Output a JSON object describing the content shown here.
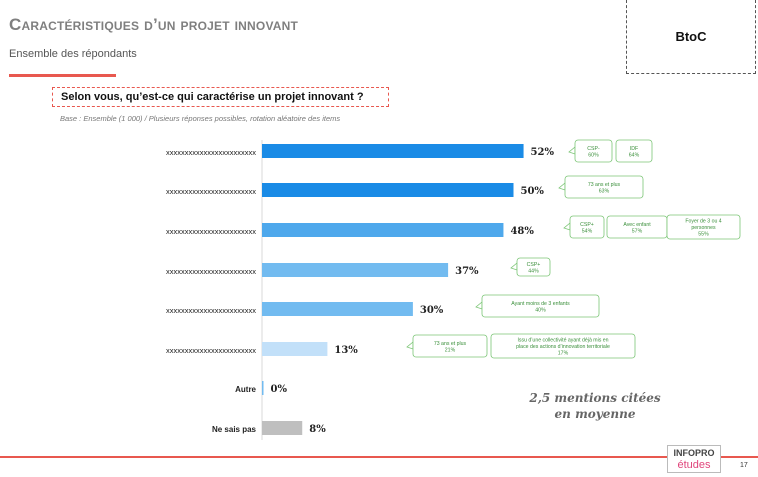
{
  "header": {
    "title": "Caractéristiques d’un projet innovant",
    "subtitle": "Ensemble des répondants",
    "segment": "BtoC"
  },
  "question": "Selon vous, qu’est-ce qui caractérise un projet innovant ?",
  "base_note": "Base : Ensemble (1 000) / Plusieurs réponses possibles, rotation aléatoire des items",
  "mentions": {
    "line1": "2,5 mentions citées",
    "line2": "en moyenne"
  },
  "logo": {
    "line1": "INFOPRO",
    "line2": "études"
  },
  "page_number": "17",
  "colors": {
    "accent": "#e8584f",
    "callout_border": "#7cc576",
    "callout_text": "#3a8f3a"
  },
  "chart_data": {
    "type": "bar",
    "orientation": "horizontal",
    "categories": [
      "xxxxxxxxxxxxxxxxxxxxxxxx",
      "xxxxxxxxxxxxxxxxxxxxxxxx",
      "xxxxxxxxxxxxxxxxxxxxxxxx",
      "xxxxxxxxxxxxxxxxxxxxxxxx",
      "xxxxxxxxxxxxxxxxxxxxxxxx",
      "xxxxxxxxxxxxxxxxxxxxxxxx",
      "Autre",
      "Ne sais pas"
    ],
    "values": [
      52,
      50,
      48,
      37,
      30,
      13,
      0,
      8
    ],
    "value_labels": [
      "52%",
      "50%",
      "48%",
      "37%",
      "30%",
      "13%",
      "0%",
      "8%"
    ],
    "bar_colors": [
      "#1a8be6",
      "#1a8be6",
      "#4ea8ec",
      "#72bbf0",
      "#72bbf0",
      "#c2e0f9",
      "#72bbf0",
      "#bfbfbf"
    ],
    "xlim": [
      0,
      100
    ],
    "grid": false,
    "callouts": [
      {
        "row": 0,
        "boxes": [
          [
            "CSP-",
            "60%"
          ],
          [
            "IDF",
            "64%"
          ]
        ]
      },
      {
        "row": 1,
        "boxes": [
          [
            "73 ans et plus",
            "63%"
          ]
        ]
      },
      {
        "row": 2,
        "boxes": [
          [
            "CSP+",
            "54%"
          ],
          [
            "Avec enfant",
            "57%"
          ],
          [
            "Foyer de 3 ou 4",
            "personnes",
            "55%"
          ]
        ]
      },
      {
        "row": 3,
        "boxes": [
          [
            "CSP+",
            "44%"
          ]
        ]
      },
      {
        "row": 4,
        "boxes": [
          [
            "Ayant moins de 3 enfants",
            "40%"
          ]
        ]
      },
      {
        "row": 5,
        "boxes": [
          [
            "73 ans et plus",
            "21%"
          ],
          [
            "Issu d’une collectivité ayant déjà mis en",
            "place des actions d’innovation territoriale",
            "17%"
          ]
        ]
      }
    ]
  }
}
